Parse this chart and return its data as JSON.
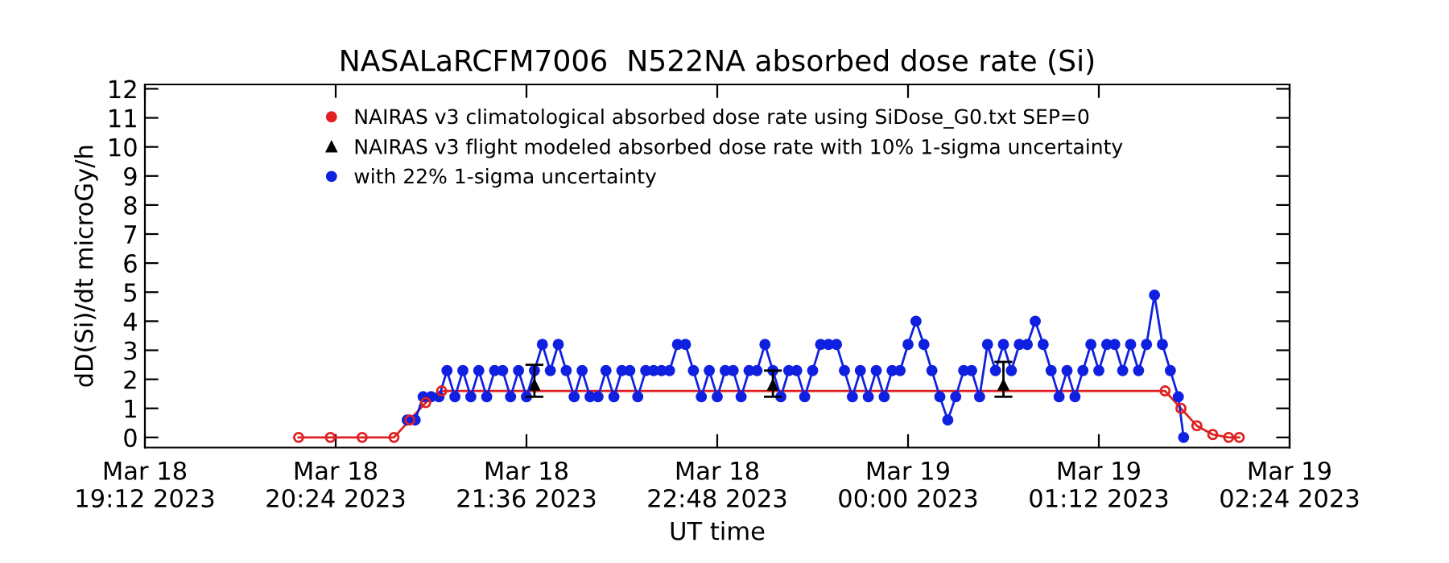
{
  "chart_data": {
    "type": "line",
    "title": "NASALaRCFM7006  N522NA absorbed dose rate (Si)",
    "xlabel": "UT time",
    "ylabel": "dD(Si)/dt microGy/h",
    "xlim": [
      "2023-03-18T19:12",
      "2023-03-19T02:24"
    ],
    "xticks": [
      {
        "value": "2023-03-18T19:12",
        "label": "Mar 18\n19:12 2023"
      },
      {
        "value": "2023-03-18T20:24",
        "label": "Mar 18\n20:24 2023"
      },
      {
        "value": "2023-03-18T21:36",
        "label": "Mar 18\n21:36 2023"
      },
      {
        "value": "2023-03-18T22:48",
        "label": "Mar 18\n22:48 2023"
      },
      {
        "value": "2023-03-19T00:00",
        "label": "Mar 19\n00:00 2023"
      },
      {
        "value": "2023-03-19T01:12",
        "label": "Mar 19\n01:12 2023"
      },
      {
        "value": "2023-03-19T02:24",
        "label": "Mar 19\n02:24 2023"
      }
    ],
    "ylim": [
      -0.35,
      12.15
    ],
    "yticks": [
      0,
      1,
      2,
      3,
      4,
      5,
      6,
      7,
      8,
      9,
      10,
      11,
      12
    ],
    "grid": false,
    "legend": "top",
    "series": [
      {
        "name": "NAIRAS v3 climatological absorbed dose rate using SiDose_G0.txt SEP=0",
        "color": "#e02020",
        "marker": "circle",
        "line_style": "solid",
        "x": [
          "2023-03-18T20:10",
          "2023-03-18T20:22",
          "2023-03-18T20:34",
          "2023-03-18T20:46",
          "2023-03-18T20:52",
          "2023-03-18T20:58",
          "2023-03-18T21:04",
          "2023-03-19T01:37",
          "2023-03-19T01:43",
          "2023-03-19T01:49",
          "2023-03-19T01:55",
          "2023-03-19T02:01",
          "2023-03-19T02:05"
        ],
        "values": [
          0,
          0,
          0,
          0,
          0.6,
          1.2,
          1.6,
          1.6,
          1.0,
          0.4,
          0.1,
          0,
          0
        ]
      },
      {
        "name": "NAIRAS v3 flight modeled absorbed dose rate with 10% 1-sigma uncertainty",
        "type": "scatter",
        "color": "#000000",
        "marker": "triangle",
        "x": [
          "2023-03-18T21:39",
          "2023-03-18T23:09",
          "2023-03-19T00:36"
        ],
        "values": [
          1.8,
          1.8,
          1.8
        ],
        "errors": [
          [
            1.4,
            2.5
          ],
          [
            1.4,
            2.3
          ],
          [
            1.4,
            2.6
          ]
        ]
      },
      {
        "name": "with 22% 1-sigma uncertainty",
        "color": "#1020e0",
        "marker": "circle",
        "line_style": "solid",
        "x": [
          "2023-03-18T20:51",
          "2023-03-18T20:54",
          "2023-03-18T20:57",
          "2023-03-18T21:00",
          "2023-03-18T21:03",
          "2023-03-18T21:06",
          "2023-03-18T21:09",
          "2023-03-18T21:12",
          "2023-03-18T21:15",
          "2023-03-18T21:18",
          "2023-03-18T21:21",
          "2023-03-18T21:24",
          "2023-03-18T21:27",
          "2023-03-18T21:30",
          "2023-03-18T21:33",
          "2023-03-18T21:36",
          "2023-03-18T21:39",
          "2023-03-18T21:42",
          "2023-03-18T21:45",
          "2023-03-18T21:48",
          "2023-03-18T21:51",
          "2023-03-18T21:54",
          "2023-03-18T21:57",
          "2023-03-18T22:00",
          "2023-03-18T22:03",
          "2023-03-18T22:06",
          "2023-03-18T22:09",
          "2023-03-18T22:12",
          "2023-03-18T22:15",
          "2023-03-18T22:18",
          "2023-03-18T22:21",
          "2023-03-18T22:24",
          "2023-03-18T22:27",
          "2023-03-18T22:30",
          "2023-03-18T22:33",
          "2023-03-18T22:36",
          "2023-03-18T22:39",
          "2023-03-18T22:42",
          "2023-03-18T22:45",
          "2023-03-18T22:48",
          "2023-03-18T22:51",
          "2023-03-18T22:54",
          "2023-03-18T22:57",
          "2023-03-18T23:00",
          "2023-03-18T23:03",
          "2023-03-18T23:06",
          "2023-03-18T23:09",
          "2023-03-18T23:12",
          "2023-03-18T23:15",
          "2023-03-18T23:18",
          "2023-03-18T23:21",
          "2023-03-18T23:24",
          "2023-03-18T23:27",
          "2023-03-18T23:30",
          "2023-03-18T23:33",
          "2023-03-18T23:36",
          "2023-03-18T23:39",
          "2023-03-18T23:42",
          "2023-03-18T23:45",
          "2023-03-18T23:48",
          "2023-03-18T23:51",
          "2023-03-18T23:54",
          "2023-03-18T23:57",
          "2023-03-19T00:00",
          "2023-03-19T00:03",
          "2023-03-19T00:06",
          "2023-03-19T00:09",
          "2023-03-19T00:12",
          "2023-03-19T00:15",
          "2023-03-19T00:18",
          "2023-03-19T00:21",
          "2023-03-19T00:24",
          "2023-03-19T00:27",
          "2023-03-19T00:30",
          "2023-03-19T00:33",
          "2023-03-19T00:36",
          "2023-03-19T00:39",
          "2023-03-19T00:42",
          "2023-03-19T00:45",
          "2023-03-19T00:48",
          "2023-03-19T00:51",
          "2023-03-19T00:54",
          "2023-03-19T00:57",
          "2023-03-19T01:00",
          "2023-03-19T01:03",
          "2023-03-19T01:06",
          "2023-03-19T01:09",
          "2023-03-19T01:12",
          "2023-03-19T01:15",
          "2023-03-19T01:18",
          "2023-03-19T01:21",
          "2023-03-19T01:24",
          "2023-03-19T01:27",
          "2023-03-19T01:30",
          "2023-03-19T01:33",
          "2023-03-19T01:36",
          "2023-03-19T01:39",
          "2023-03-19T01:42",
          "2023-03-19T01:44"
        ],
        "values": [
          0.6,
          0.6,
          1.4,
          1.4,
          1.4,
          2.3,
          1.4,
          2.3,
          1.4,
          2.3,
          1.4,
          2.3,
          2.3,
          1.4,
          2.3,
          1.4,
          2.3,
          3.2,
          2.3,
          3.2,
          2.3,
          1.4,
          2.3,
          1.4,
          1.4,
          2.3,
          1.4,
          2.3,
          2.3,
          1.4,
          2.3,
          2.3,
          2.3,
          2.3,
          3.2,
          3.2,
          2.3,
          1.4,
          2.3,
          1.4,
          2.3,
          2.3,
          1.4,
          2.3,
          2.3,
          3.2,
          2.3,
          1.4,
          2.3,
          2.3,
          1.4,
          2.3,
          3.2,
          3.2,
          3.2,
          2.3,
          1.4,
          2.3,
          1.4,
          2.3,
          1.4,
          2.3,
          2.3,
          3.2,
          4.0,
          3.2,
          2.3,
          1.4,
          0.6,
          1.4,
          2.3,
          2.3,
          1.4,
          3.2,
          2.3,
          3.2,
          2.3,
          3.2,
          3.2,
          4.0,
          3.2,
          2.3,
          1.4,
          2.3,
          1.4,
          2.3,
          3.2,
          2.3,
          3.2,
          3.2,
          2.3,
          3.2,
          2.3,
          3.2,
          4.9,
          3.2,
          2.3,
          1.4,
          0
        ]
      }
    ]
  }
}
